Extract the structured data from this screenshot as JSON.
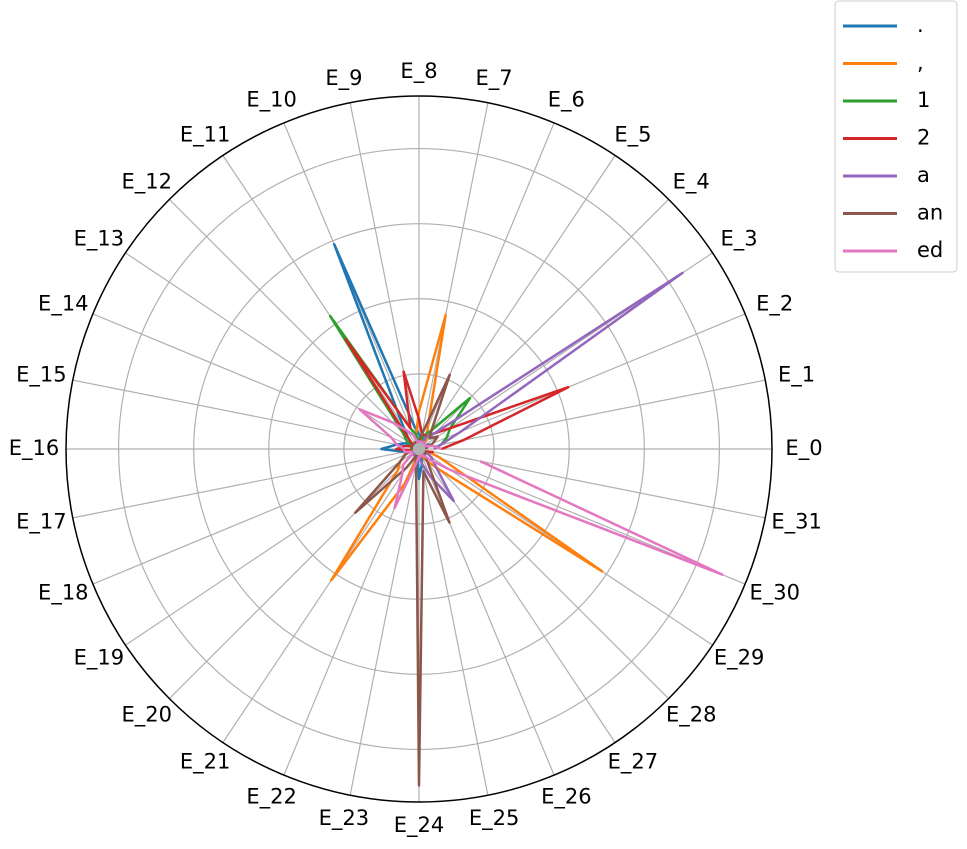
{
  "chart_data": {
    "type": "radar",
    "categories": [
      "E_0",
      "E_1",
      "E_2",
      "E_3",
      "E_4",
      "E_5",
      "E_6",
      "E_7",
      "E_8",
      "E_9",
      "E_10",
      "E_11",
      "E_12",
      "E_13",
      "E_14",
      "E_15",
      "E_16",
      "E_17",
      "E_18",
      "E_19",
      "E_20",
      "E_21",
      "E_22",
      "E_23",
      "E_24",
      "E_25",
      "E_26",
      "E_27",
      "E_28",
      "E_29",
      "E_30",
      "E_31"
    ],
    "ylim": [
      0,
      4.7
    ],
    "yticks": [
      1,
      2,
      3,
      4
    ],
    "grid": true,
    "legend": "upper right",
    "series": [
      {
        "name": ".",
        "color": "#1f77b4",
        "values": [
          0.1,
          0.1,
          0.15,
          0.1,
          0.1,
          0.1,
          0.1,
          0.15,
          0.2,
          0.3,
          2.95,
          0.4,
          0.2,
          0.1,
          0.2,
          0.3,
          0.5,
          0.2,
          0.1,
          0.1,
          0.1,
          0.1,
          0.1,
          0.1,
          0.4,
          0.2,
          0.1,
          0.1,
          0.1,
          0.1,
          0.1,
          0.1
        ]
      },
      {
        "name": ",",
        "color": "#ff7f0e",
        "values": [
          0.1,
          0.1,
          0.1,
          0.1,
          0.1,
          0.2,
          0.3,
          1.82,
          0.5,
          0.2,
          0.1,
          0.1,
          0.1,
          0.1,
          0.1,
          0.1,
          0.1,
          0.2,
          0.2,
          0.3,
          0.4,
          2.1,
          0.5,
          0.1,
          0.1,
          0.1,
          0.1,
          0.2,
          0.4,
          2.93,
          0.3,
          0.1
        ]
      },
      {
        "name": "1",
        "color": "#2ca02c",
        "values": [
          0.2,
          0.3,
          0.4,
          0.5,
          0.96,
          0.3,
          0.2,
          0.1,
          0.1,
          0.2,
          0.3,
          2.13,
          0.3,
          0.2,
          0.1,
          0.1,
          0.1,
          0.1,
          0.1,
          0.1,
          0.1,
          0.1,
          0.1,
          0.1,
          0.1,
          0.1,
          0.1,
          0.1,
          0.1,
          0.1,
          0.1,
          0.1
        ]
      },
      {
        "name": "2",
        "color": "#d62728",
        "values": [
          0.3,
          0.6,
          2.15,
          0.5,
          0.3,
          0.2,
          0.2,
          0.2,
          0.4,
          1.05,
          0.3,
          1.76,
          0.2,
          0.1,
          0.1,
          0.2,
          0.3,
          0.1,
          0.1,
          0.1,
          0.1,
          0.1,
          0.1,
          0.1,
          0.1,
          0.1,
          0.1,
          0.1,
          0.1,
          0.1,
          0.1,
          0.2
        ]
      },
      {
        "name": "a",
        "color": "#9467bd",
        "values": [
          0.2,
          0.3,
          0.6,
          4.22,
          0.3,
          0.2,
          0.1,
          0.1,
          0.1,
          0.1,
          0.1,
          0.1,
          0.1,
          0.1,
          0.1,
          0.1,
          0.1,
          0.1,
          0.1,
          0.1,
          0.1,
          0.1,
          0.1,
          0.1,
          0.1,
          0.2,
          0.4,
          0.83,
          0.3,
          0.2,
          0.1,
          0.1
        ]
      },
      {
        "name": "an",
        "color": "#8c564b",
        "values": [
          0.1,
          0.1,
          0.2,
          0.3,
          0.2,
          0.3,
          1.07,
          0.2,
          0.1,
          0.1,
          0.1,
          0.1,
          0.1,
          0.1,
          0.1,
          0.1,
          0.1,
          0.1,
          0.2,
          0.3,
          1.2,
          0.3,
          0.1,
          0.2,
          4.48,
          0.3,
          1.06,
          0.2,
          0.1,
          0.1,
          0.1,
          0.1
        ]
      },
      {
        "name": "ed",
        "color": "#e377c2",
        "values": [
          0.3,
          0.2,
          0.1,
          0.1,
          0.1,
          0.1,
          0.1,
          0.1,
          0.1,
          0.1,
          0.2,
          0.3,
          0.5,
          0.95,
          0.4,
          0.3,
          0.2,
          0.2,
          0.1,
          0.1,
          0.3,
          0.4,
          0.85,
          0.2,
          0.1,
          0.1,
          0.1,
          0.1,
          0.2,
          0.5,
          4.37,
          0.83
        ]
      }
    ]
  }
}
